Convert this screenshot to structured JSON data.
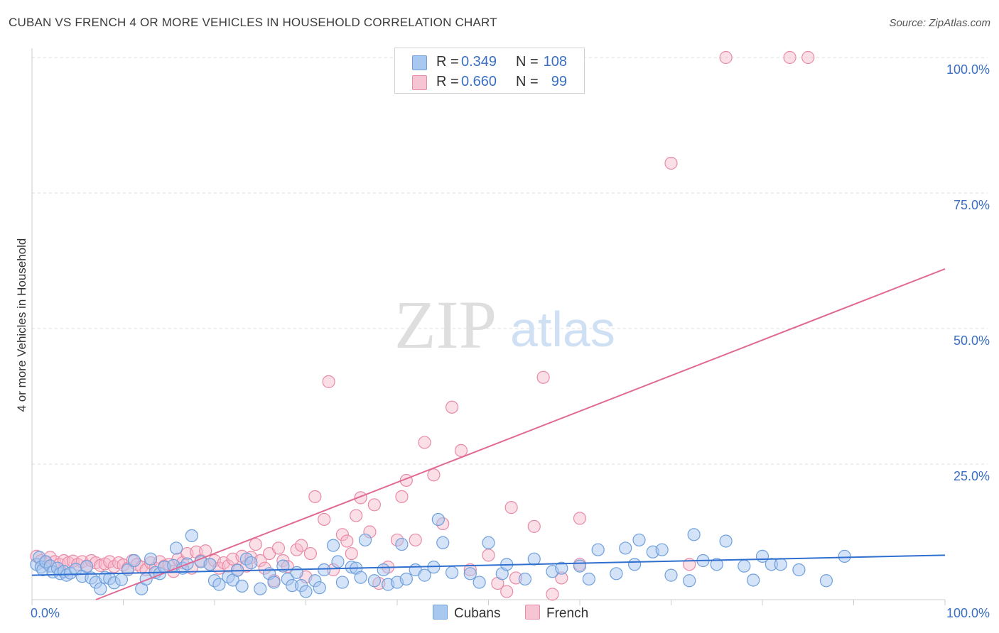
{
  "title": "CUBAN VS FRENCH 4 OR MORE VEHICLES IN HOUSEHOLD CORRELATION CHART",
  "source": "Source: ZipAtlas.com",
  "watermark": {
    "zip": "ZIP",
    "atlas": "atlas"
  },
  "legend": {
    "cubans": {
      "r_label": "R =",
      "r_value": "0.349",
      "n_label": "N =",
      "n_value": "108"
    },
    "french": {
      "r_label": "R =",
      "r_value": "0.660",
      "n_label": "N =",
      "n_value": "99"
    }
  },
  "bottom_legend": {
    "cubans": "Cubans",
    "french": "French"
  },
  "colors": {
    "cubans_fill": "#a9c8f0",
    "cubans_stroke": "#6fa0dc",
    "cubans_line": "#2f6fcf",
    "french_fill": "#f6b7c9",
    "french_stroke": "#e98aa6",
    "french_line": "#e06a93",
    "axis_label": "#3a6fc4",
    "grid": "#dddddd"
  },
  "chart_data": {
    "type": "scatter",
    "title": "CUBAN VS FRENCH 4 OR MORE VEHICLES IN HOUSEHOLD CORRELATION CHART",
    "xlabel": "",
    "ylabel": "4 or more Vehicles in Household",
    "xlim": [
      0,
      100
    ],
    "ylim": [
      0,
      100
    ],
    "x_tick_labels": [
      "0.0%",
      "100.0%"
    ],
    "y_ticks": [
      25,
      50,
      75,
      100
    ],
    "y_tick_labels": [
      "25.0%",
      "50.0%",
      "75.0%",
      "100.0%"
    ],
    "grid": true,
    "legend_position": "top-center",
    "series": [
      {
        "name": "Cubans",
        "r": 0.349,
        "n": 108,
        "trend": {
          "x": [
            0,
            100
          ],
          "y": [
            4.5,
            8.2
          ]
        },
        "points": [
          [
            0.5,
            6.5
          ],
          [
            0.8,
            7.8
          ],
          [
            1,
            6
          ],
          [
            1.2,
            5.5
          ],
          [
            1.5,
            7
          ],
          [
            2,
            6.2
          ],
          [
            2.3,
            5.1
          ],
          [
            2.8,
            5.8
          ],
          [
            3.1,
            4.8
          ],
          [
            3.5,
            5.2
          ],
          [
            3.8,
            4.5
          ],
          [
            4.2,
            4.9
          ],
          [
            4.8,
            5.6
          ],
          [
            5.5,
            4.3
          ],
          [
            6,
            6.1
          ],
          [
            6.5,
            4
          ],
          [
            7,
            3.2
          ],
          [
            7.5,
            2
          ],
          [
            8,
            4.1
          ],
          [
            8.5,
            3.9
          ],
          [
            9,
            3.1
          ],
          [
            9.8,
            3.7
          ],
          [
            10.5,
            5.5
          ],
          [
            11.2,
            7.2
          ],
          [
            12,
            2
          ],
          [
            12.5,
            3.8
          ],
          [
            13,
            7.5
          ],
          [
            13.5,
            5
          ],
          [
            14,
            4.8
          ],
          [
            14.5,
            6
          ],
          [
            15.5,
            6.3
          ],
          [
            15.8,
            9.5
          ],
          [
            16.5,
            5.8
          ],
          [
            17,
            6.6
          ],
          [
            17.5,
            11.8
          ],
          [
            18.5,
            7
          ],
          [
            19.5,
            6.5
          ],
          [
            20,
            3.5
          ],
          [
            20.5,
            2.8
          ],
          [
            21.5,
            4.2
          ],
          [
            22,
            3.6
          ],
          [
            22.5,
            5.4
          ],
          [
            23,
            2.5
          ],
          [
            23.5,
            7.5
          ],
          [
            24,
            6.8
          ],
          [
            25,
            2
          ],
          [
            26,
            4.8
          ],
          [
            26.5,
            3.2
          ],
          [
            27.5,
            6.2
          ],
          [
            28,
            3.8
          ],
          [
            28.5,
            2.6
          ],
          [
            29,
            5
          ],
          [
            29.5,
            2.6
          ],
          [
            30,
            1.5
          ],
          [
            31,
            3.5
          ],
          [
            31.5,
            2.2
          ],
          [
            32,
            5.5
          ],
          [
            33,
            10
          ],
          [
            33.5,
            7
          ],
          [
            34,
            3.2
          ],
          [
            35,
            6
          ],
          [
            35.5,
            5.8
          ],
          [
            36,
            4.1
          ],
          [
            36.5,
            11
          ],
          [
            37.5,
            3.5
          ],
          [
            38.5,
            5.5
          ],
          [
            39,
            2.8
          ],
          [
            40,
            3.2
          ],
          [
            40.5,
            10.2
          ],
          [
            41,
            3.8
          ],
          [
            42,
            5.5
          ],
          [
            43,
            4.5
          ],
          [
            44,
            6
          ],
          [
            44.5,
            14.8
          ],
          [
            45,
            10.5
          ],
          [
            46,
            5
          ],
          [
            48,
            4.8
          ],
          [
            49,
            3.2
          ],
          [
            50,
            10.5
          ],
          [
            51.5,
            4.8
          ],
          [
            52,
            6.5
          ],
          [
            54,
            3.8
          ],
          [
            55,
            7.5
          ],
          [
            57,
            5.2
          ],
          [
            58,
            5.8
          ],
          [
            60,
            6.2
          ],
          [
            61,
            3.8
          ],
          [
            62,
            9.2
          ],
          [
            64,
            4.8
          ],
          [
            65,
            9.5
          ],
          [
            66,
            6.5
          ],
          [
            66.5,
            11
          ],
          [
            68,
            8.8
          ],
          [
            69,
            9.2
          ],
          [
            70,
            4.5
          ],
          [
            72,
            3.5
          ],
          [
            72.5,
            12
          ],
          [
            73.5,
            7.2
          ],
          [
            75,
            6.5
          ],
          [
            76,
            10.8
          ],
          [
            78,
            6.2
          ],
          [
            79,
            3.6
          ],
          [
            80,
            8
          ],
          [
            81,
            6.5
          ],
          [
            82,
            6.5
          ],
          [
            84,
            5.5
          ],
          [
            87,
            3.5
          ],
          [
            89,
            8
          ]
        ]
      },
      {
        "name": "French",
        "r": 0.66,
        "n": 99,
        "trend": {
          "x": [
            7,
            100
          ],
          "y": [
            0,
            61
          ]
        },
        "points": [
          [
            0.5,
            8
          ],
          [
            1,
            7.2
          ],
          [
            1.5,
            6.8
          ],
          [
            2,
            7.8
          ],
          [
            2.5,
            7
          ],
          [
            3,
            6.5
          ],
          [
            3.5,
            7.2
          ],
          [
            4,
            6.8
          ],
          [
            4.5,
            7.1
          ],
          [
            5,
            6.5
          ],
          [
            5.5,
            7
          ],
          [
            6,
            6.2
          ],
          [
            6.5,
            7.2
          ],
          [
            7,
            6.8
          ],
          [
            7.5,
            6.3
          ],
          [
            8,
            6.6
          ],
          [
            8.5,
            7
          ],
          [
            9,
            6.1
          ],
          [
            9.5,
            6.8
          ],
          [
            10,
            6.4
          ],
          [
            10.5,
            5.8
          ],
          [
            11,
            7.2
          ],
          [
            11.5,
            6.5
          ],
          [
            12,
            6
          ],
          [
            12.5,
            5.5
          ],
          [
            13,
            6.8
          ],
          [
            13.5,
            5.8
          ],
          [
            14,
            7
          ],
          [
            14.5,
            6.2
          ],
          [
            15,
            6.5
          ],
          [
            15.5,
            5.2
          ],
          [
            16,
            7.5
          ],
          [
            16.5,
            6.8
          ],
          [
            17,
            8.5
          ],
          [
            17.5,
            5.8
          ],
          [
            18,
            8.8
          ],
          [
            18.5,
            7.2
          ],
          [
            19,
            9
          ],
          [
            19.5,
            6.5
          ],
          [
            20,
            7.2
          ],
          [
            20.5,
            5.8
          ],
          [
            21,
            6.8
          ],
          [
            21.5,
            6.2
          ],
          [
            22,
            7.5
          ],
          [
            22.5,
            5.5
          ],
          [
            23,
            8
          ],
          [
            23.5,
            6.2
          ],
          [
            24,
            7.8
          ],
          [
            24.5,
            10.2
          ],
          [
            25,
            7.2
          ],
          [
            25.5,
            5.8
          ],
          [
            26,
            8.5
          ],
          [
            26.5,
            3.5
          ],
          [
            27,
            9.5
          ],
          [
            27.5,
            7.2
          ],
          [
            28,
            6.1
          ],
          [
            29,
            9.2
          ],
          [
            29.5,
            10
          ],
          [
            30,
            4.2
          ],
          [
            30.5,
            8.5
          ],
          [
            31,
            19
          ],
          [
            32,
            14.8
          ],
          [
            32.5,
            40.2
          ],
          [
            33,
            5.5
          ],
          [
            34,
            12
          ],
          [
            34.5,
            10.8
          ],
          [
            35,
            8.5
          ],
          [
            35.5,
            15.5
          ],
          [
            36,
            18.8
          ],
          [
            37,
            12.5
          ],
          [
            37.5,
            17.5
          ],
          [
            38,
            3
          ],
          [
            39,
            6
          ],
          [
            40,
            11
          ],
          [
            40.5,
            19
          ],
          [
            41,
            22
          ],
          [
            42,
            11
          ],
          [
            43,
            29
          ],
          [
            44,
            23
          ],
          [
            45,
            14
          ],
          [
            46,
            35.5
          ],
          [
            47,
            27.5
          ],
          [
            48,
            5.5
          ],
          [
            50,
            8.2
          ],
          [
            51,
            3
          ],
          [
            52,
            1.5
          ],
          [
            52.5,
            17
          ],
          [
            53,
            4
          ],
          [
            56,
            41
          ],
          [
            57,
            1
          ],
          [
            58,
            4
          ],
          [
            60,
            6.5
          ],
          [
            70,
            80.5
          ],
          [
            72,
            6.5
          ],
          [
            76,
            100
          ],
          [
            83,
            100
          ],
          [
            85,
            100
          ],
          [
            60,
            15
          ],
          [
            55,
            13.5
          ]
        ]
      }
    ]
  }
}
